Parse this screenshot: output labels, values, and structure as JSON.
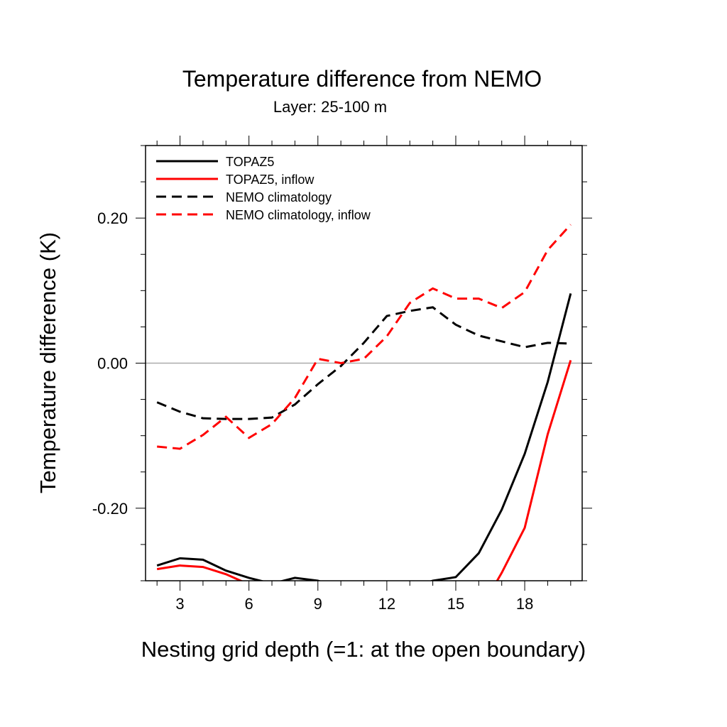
{
  "chart_data": {
    "type": "line",
    "title": "Temperature difference from NEMO",
    "subtitle": "Layer: 25-100 m",
    "xlabel": "Nesting grid depth (=1: at the open boundary)",
    "ylabel": "Temperature difference (K)",
    "xlim": [
      1.5,
      20.5
    ],
    "ylim": [
      -0.3,
      0.3
    ],
    "x_ticks": [
      3,
      6,
      9,
      12,
      15,
      18
    ],
    "x_tick_labels": [
      "3",
      "6",
      "9",
      "12",
      "15",
      "18"
    ],
    "y_ticks": [
      -0.2,
      0.0,
      0.2
    ],
    "y_tick_labels": [
      "-0.20",
      "0.00",
      "0.20"
    ],
    "reference_line": 0.0,
    "grid": false,
    "legend_position": "top-left",
    "x": [
      2,
      3,
      4,
      5,
      6,
      7,
      8,
      9,
      10,
      11,
      12,
      13,
      14,
      15,
      16,
      17,
      18,
      19,
      20
    ],
    "series": [
      {
        "name": "TOPAZ5",
        "color": "#000000",
        "dash": "solid",
        "values": [
          -0.279,
          -0.269,
          -0.271,
          -0.286,
          -0.296,
          -0.304,
          -0.296,
          -0.3,
          -0.31,
          -0.31,
          -0.31,
          -0.31,
          -0.3,
          -0.295,
          -0.262,
          -0.202,
          -0.125,
          -0.026,
          0.096
        ]
      },
      {
        "name": "TOPAZ5, inflow",
        "color": "#ff0000",
        "dash": "solid",
        "values": [
          -0.284,
          -0.279,
          -0.281,
          -0.291,
          -0.305,
          -0.33,
          -0.34,
          -0.35,
          -0.35,
          -0.35,
          -0.35,
          -0.35,
          -0.35,
          -0.35,
          -0.344,
          -0.289,
          -0.227,
          -0.098,
          0.004
        ]
      },
      {
        "name": "NEMO climatology",
        "color": "#000000",
        "dash": "dashed",
        "values": [
          -0.054,
          -0.067,
          -0.076,
          -0.077,
          -0.077,
          -0.075,
          -0.057,
          -0.029,
          -0.004,
          0.028,
          0.065,
          0.072,
          0.077,
          0.053,
          0.038,
          0.03,
          0.022,
          0.028,
          0.027
        ]
      },
      {
        "name": "NEMO climatology, inflow",
        "color": "#ff0000",
        "dash": "dashed",
        "values": [
          -0.115,
          -0.118,
          -0.099,
          -0.074,
          -0.103,
          -0.084,
          -0.048,
          0.006,
          0.0,
          0.006,
          0.037,
          0.083,
          0.103,
          0.089,
          0.089,
          0.076,
          0.098,
          0.156,
          0.191
        ]
      }
    ]
  }
}
